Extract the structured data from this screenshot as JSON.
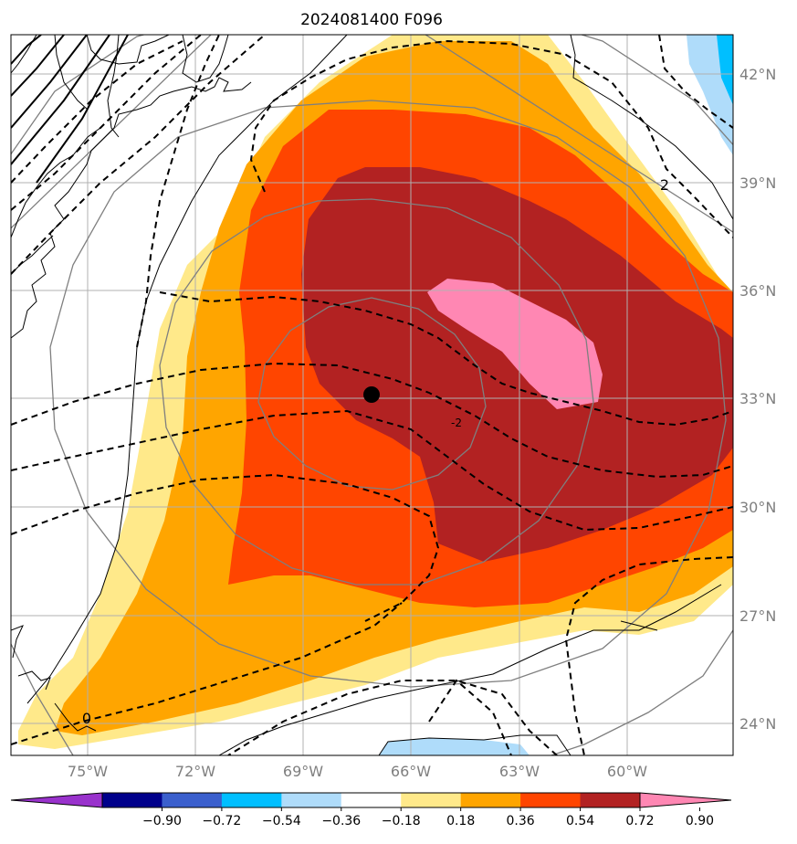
{
  "title": "2024081400 F096",
  "map": {
    "lon_labels": [
      "75°W",
      "72°W",
      "69°W",
      "66°W",
      "63°W",
      "60°W"
    ],
    "lat_labels": [
      "42°N",
      "39°N",
      "36°N",
      "33°N",
      "30°N",
      "27°N",
      "24°N"
    ],
    "contour_labels": [
      "2",
      "-2",
      "0"
    ],
    "center_marker": "storm center"
  },
  "colorbar": {
    "ticks": [
      "−0.90",
      "−0.72",
      "−0.54",
      "−0.36",
      "−0.18",
      "0.18",
      "0.36",
      "0.54",
      "0.72",
      "0.90"
    ],
    "colors": [
      "#9932cc",
      "#00008b",
      "#3a5fcd",
      "#00bfff",
      "#afdcfa",
      "#ffffff",
      "#ffe98a",
      "#ffa500",
      "#ff4500",
      "#b22222",
      "#ff87b3"
    ]
  }
}
